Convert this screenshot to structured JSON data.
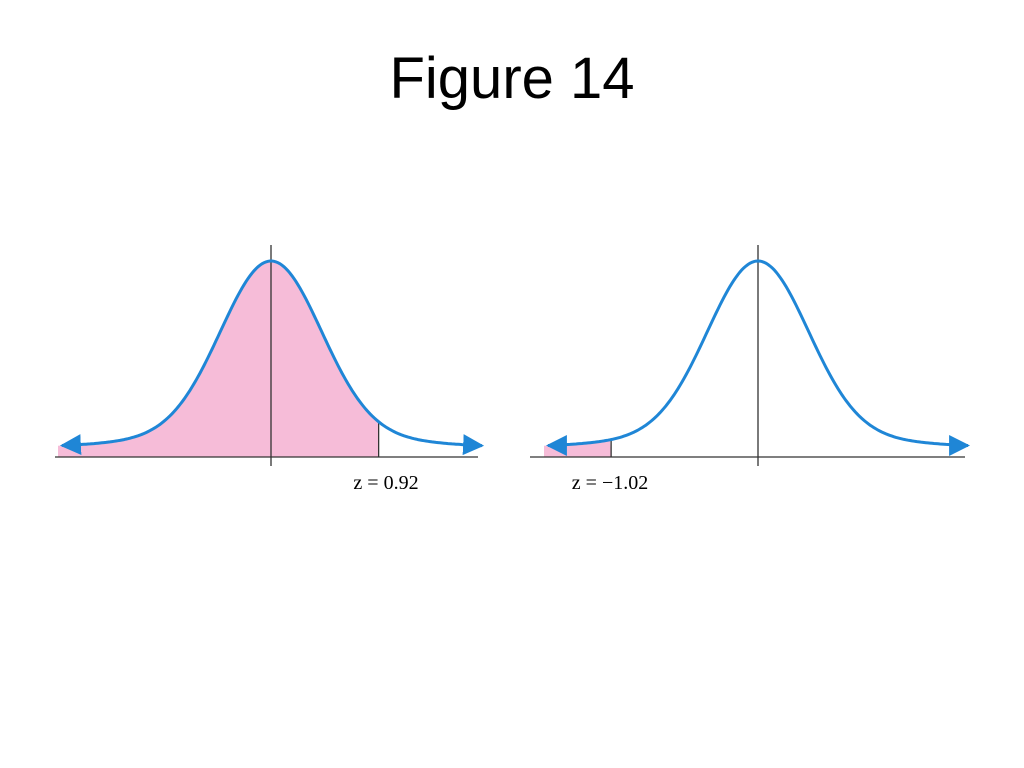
{
  "title": "Figure 14",
  "panels": [
    {
      "z": 0.92,
      "label": "z = 0.92",
      "shade": "left"
    },
    {
      "z": -1.02,
      "label": "z = −1.02",
      "shade": "left"
    }
  ]
}
